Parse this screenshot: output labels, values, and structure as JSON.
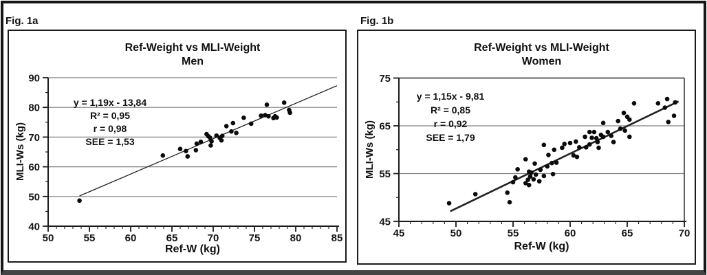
{
  "page": {
    "background": "#ffffff",
    "frame_border_color": "#161616",
    "frame_bottom_color": "#444444",
    "box_border_color": "#1a1a1a",
    "grid_color": "#7d7d7d",
    "axis_color": "#1a1a1a",
    "marker_color": "#0b0b0b",
    "trendline_color": "#222222"
  },
  "figures": [
    {
      "fig_label": "Fig. 1a",
      "title_line1": "Ref-Weight vs MLI-Weight",
      "title_line2": "Men",
      "annotation_lines": [
        "y = 1,19x - 13,84",
        "R² = 0,95",
        "r = 0,98",
        "SEE = 1,53"
      ],
      "xlabel": "Ref-W (kg)",
      "ylabel": "MLI-Ws (kg)"
    },
    {
      "fig_label": "Fig. 1b",
      "title_line1": "Ref-Weight vs MLI-Weight",
      "title_line2": "Women",
      "annotation_lines": [
        "y = 1,15x - 9,81",
        "R² = 0,85",
        "r = 0,92",
        "SEE = 1,79"
      ],
      "xlabel": "Ref-W (kg)",
      "ylabel": "MLI-Ws (kg)"
    }
  ],
  "chart_data": [
    {
      "type": "scatter",
      "title": "Ref-Weight vs MLI-Weight Men",
      "xlabel": "Ref-W (kg)",
      "ylabel": "MLI-Ws (kg)",
      "xlim": [
        50,
        85
      ],
      "ylim": [
        40,
        90
      ],
      "x_ticks": [
        50,
        55,
        60,
        65,
        70,
        75,
        80,
        85
      ],
      "y_ticks": [
        40,
        50,
        60,
        70,
        80,
        90
      ],
      "x_minor_step": 1,
      "y_minor_step": 5,
      "grid": "horizontal-major",
      "legend": "none",
      "plot_border_box": false,
      "equation": "y = 1,19x - 13,84",
      "r_squared": "0,95",
      "r": "0,98",
      "see": "1,53",
      "trendline": {
        "slope": 1.19,
        "intercept": -13.84,
        "x_start": 53.8,
        "x_end": 85.0
      },
      "points": [
        [
          53.8,
          48.6
        ],
        [
          63.9,
          63.8
        ],
        [
          66.0,
          66.0
        ],
        [
          66.7,
          65.3
        ],
        [
          66.9,
          63.5
        ],
        [
          67.9,
          65.6
        ],
        [
          68.0,
          67.8
        ],
        [
          68.5,
          68.4
        ],
        [
          69.2,
          71.0
        ],
        [
          69.4,
          70.3
        ],
        [
          69.6,
          69.8
        ],
        [
          69.7,
          67.2
        ],
        [
          69.8,
          68.6
        ],
        [
          70.4,
          70.5
        ],
        [
          70.8,
          69.7
        ],
        [
          71.0,
          68.9
        ],
        [
          71.1,
          70.4
        ],
        [
          71.6,
          73.7
        ],
        [
          72.2,
          71.9
        ],
        [
          72.4,
          74.7
        ],
        [
          72.8,
          71.4
        ],
        [
          73.7,
          76.5
        ],
        [
          74.6,
          74.5
        ],
        [
          75.8,
          77.2
        ],
        [
          76.3,
          77.4
        ],
        [
          76.5,
          80.9
        ],
        [
          76.7,
          77.0
        ],
        [
          77.3,
          76.4
        ],
        [
          77.5,
          77.0
        ],
        [
          77.7,
          76.6
        ],
        [
          78.6,
          81.6
        ],
        [
          79.2,
          79.1
        ],
        [
          79.3,
          78.2
        ]
      ]
    },
    {
      "type": "scatter",
      "title": "Ref-Weight vs MLI-Weight Women",
      "xlabel": "Ref-W (kg)",
      "ylabel": "MLI-Ws (kg)",
      "xlim": [
        45,
        70
      ],
      "ylim": [
        45,
        75
      ],
      "x_ticks": [
        45,
        50,
        55,
        60,
        65,
        70
      ],
      "y_ticks": [
        45,
        55,
        65,
        75
      ],
      "x_minor_step": 1,
      "y_minor_step": 5,
      "grid": "horizontal-major",
      "legend": "none",
      "plot_border_box": true,
      "equation": "y = 1,15x - 9,81",
      "r_squared": "0,85",
      "r": "0,92",
      "see": "1,79",
      "trendline": {
        "slope": 1.15,
        "intercept": -9.81,
        "x_start": 49.5,
        "x_end": 69.5
      },
      "points": [
        [
          49.4,
          48.8
        ],
        [
          51.7,
          50.7
        ],
        [
          54.5,
          51.0
        ],
        [
          54.7,
          49.0
        ],
        [
          55.0,
          53.2
        ],
        [
          55.2,
          54.2
        ],
        [
          55.4,
          55.9
        ],
        [
          56.1,
          53.0
        ],
        [
          56.1,
          58.0
        ],
        [
          56.3,
          53.7
        ],
        [
          56.4,
          52.6
        ],
        [
          56.4,
          55.4
        ],
        [
          56.5,
          54.4
        ],
        [
          56.6,
          55.2
        ],
        [
          56.8,
          53.8
        ],
        [
          56.9,
          57.1
        ],
        [
          57.0,
          54.8
        ],
        [
          57.3,
          53.4
        ],
        [
          57.4,
          55.8
        ],
        [
          57.7,
          54.5
        ],
        [
          57.7,
          61.0
        ],
        [
          58.0,
          56.5
        ],
        [
          58.1,
          58.9
        ],
        [
          58.5,
          54.9
        ],
        [
          58.4,
          57.2
        ],
        [
          58.6,
          60.0
        ],
        [
          58.8,
          57.3
        ],
        [
          59.3,
          60.4
        ],
        [
          59.5,
          61.2
        ],
        [
          60.0,
          61.4
        ],
        [
          60.3,
          58.8
        ],
        [
          60.5,
          61.7
        ],
        [
          60.6,
          58.5
        ],
        [
          60.8,
          60.5
        ],
        [
          61.3,
          62.7
        ],
        [
          61.4,
          60.5
        ],
        [
          61.7,
          61.1
        ],
        [
          61.7,
          63.7
        ],
        [
          61.9,
          62.5
        ],
        [
          62.1,
          63.7
        ],
        [
          62.3,
          62.4
        ],
        [
          62.4,
          61.6
        ],
        [
          62.5,
          60.4
        ],
        [
          62.7,
          63.1
        ],
        [
          62.9,
          62.7
        ],
        [
          62.9,
          65.6
        ],
        [
          63.3,
          63.7
        ],
        [
          63.6,
          62.9
        ],
        [
          63.8,
          61.6
        ],
        [
          64.2,
          66.0
        ],
        [
          64.4,
          64.4
        ],
        [
          64.7,
          67.7
        ],
        [
          64.8,
          64.0
        ],
        [
          65.0,
          66.9
        ],
        [
          65.2,
          62.7
        ],
        [
          65.2,
          66.3
        ],
        [
          65.6,
          69.7
        ],
        [
          67.7,
          69.7
        ],
        [
          68.3,
          68.8
        ],
        [
          68.5,
          70.6
        ],
        [
          68.6,
          65.8
        ],
        [
          69.1,
          67.1
        ],
        [
          69.2,
          69.9
        ]
      ]
    }
  ]
}
